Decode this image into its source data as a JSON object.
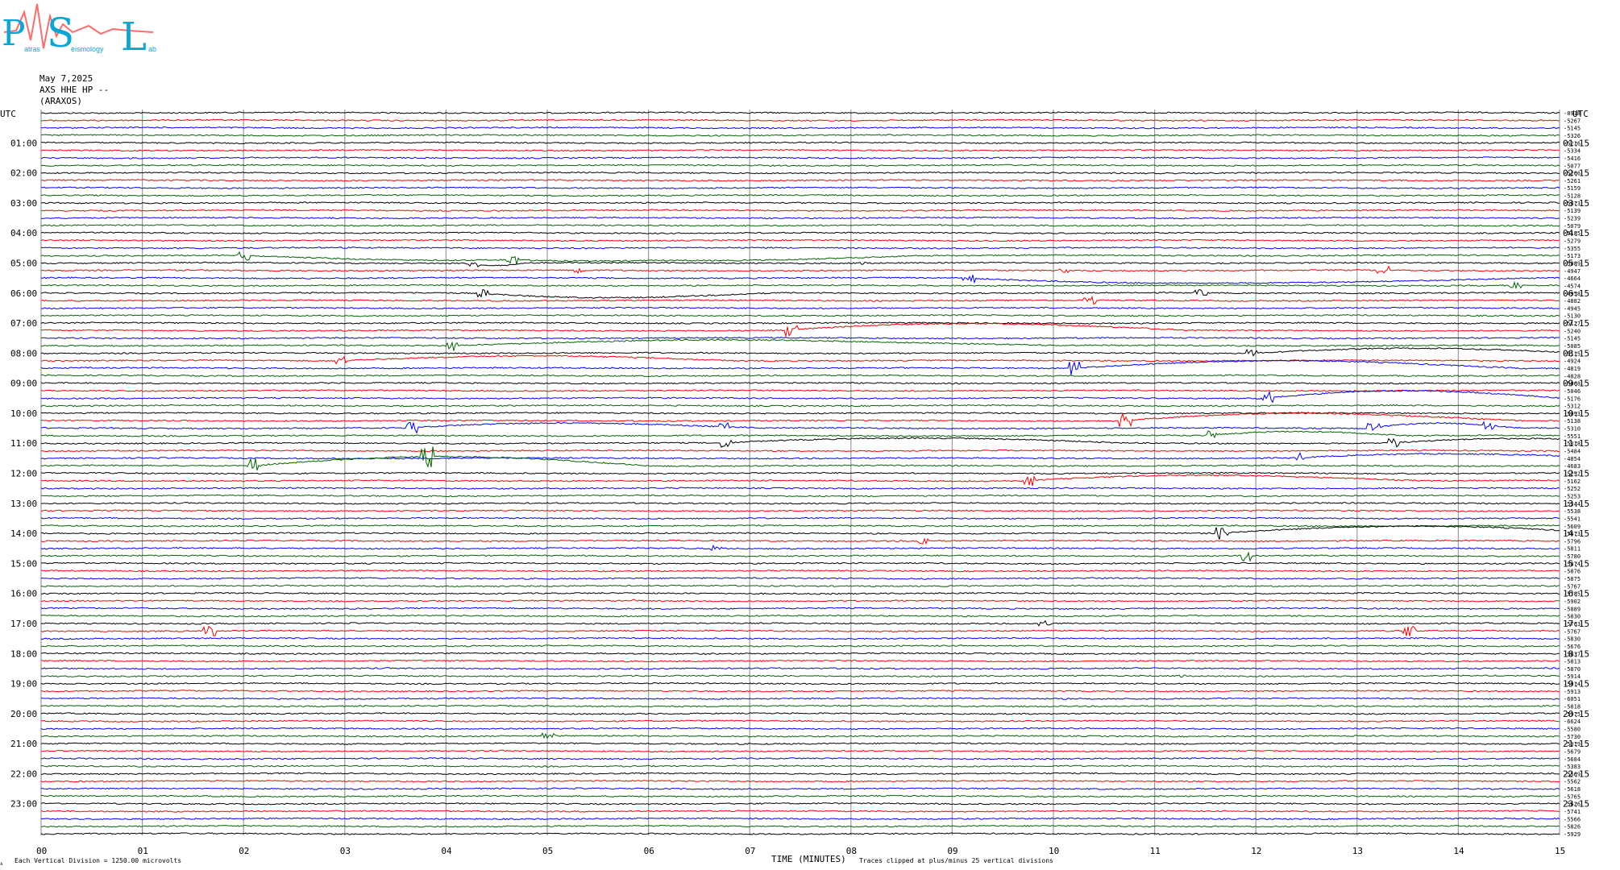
{
  "logo": {
    "big_letters": [
      "P",
      "S",
      "L"
    ],
    "small_words": [
      "atras",
      "eismology",
      "ab"
    ]
  },
  "header": {
    "date": "May 7,2025",
    "channel": "AXS HHE HP --",
    "station": "(ARAXOS)"
  },
  "chart_data": {
    "type": "line",
    "title": "",
    "left_axis_title": "UTC",
    "right_axis_title": "UTC",
    "xlabel": "TIME (MINUTES)",
    "xlim": [
      0,
      15
    ],
    "x_ticks": [
      "00",
      "01",
      "02",
      "03",
      "04",
      "05",
      "06",
      "07",
      "08",
      "09",
      "10",
      "11",
      "12",
      "13",
      "14",
      "15"
    ],
    "left_hour_labels": [
      "01:00",
      "02:00",
      "03:00",
      "04:00",
      "05:00",
      "06:00",
      "07:00",
      "08:00",
      "09:00",
      "10:00",
      "11:00",
      "12:00",
      "13:00",
      "14:00",
      "15:00",
      "16:00",
      "17:00",
      "18:00",
      "19:00",
      "20:00",
      "21:00",
      "22:00",
      "23:00"
    ],
    "right_hour_labels": [
      "01:15",
      "02:15",
      "03:15",
      "04:15",
      "05:15",
      "06:15",
      "07:15",
      "08:15",
      "09:15",
      "10:15",
      "11:15",
      "12:15",
      "13:15",
      "14:15",
      "15:15",
      "16:15",
      "17:15",
      "18:15",
      "19:15",
      "20:15",
      "21:15",
      "22:15",
      "23:15"
    ],
    "trace_colors": [
      "#000000",
      "#ff0000",
      "#0000ff",
      "#006400"
    ],
    "right_offsets": [
      "-8918",
      "-5267",
      "-5145",
      "-5326",
      "-5216",
      "-5334",
      "-5416",
      "-5077",
      "-5266",
      "-5261",
      "-5159",
      "-5128",
      "-5073",
      "-5139",
      "-5239",
      "-5079",
      "-5185",
      "-5279",
      "-5355",
      "-5173",
      "-5089",
      "-4947",
      "-4664",
      "-4574",
      "-4958",
      "-4882",
      "-4945",
      "-5130",
      "-5127",
      "-5240",
      "-5145",
      "-5085",
      "-5115",
      "-4924",
      "-4819",
      "-4828",
      "-5068",
      "-5046",
      "-5176",
      "-5312",
      "-5093",
      "-5138",
      "-5310",
      "-5551",
      "-5318",
      "-5484",
      "-4854",
      "-4683",
      "-5252",
      "-5162",
      "-5252",
      "-5253",
      "-5344",
      "-5538",
      "-5541",
      "-5609",
      "-5673",
      "-5796",
      "-5811",
      "-5780",
      "-5874",
      "-5876",
      "-5875",
      "-5767",
      "-5785",
      "-5902",
      "-5889",
      "-5830",
      "-5763",
      "-5767",
      "-5830",
      "-5676",
      "-5837",
      "-5813",
      "-5870",
      "-5914",
      "-5914",
      "-5913",
      "-6051",
      "-5818",
      "-5975",
      "-6624",
      "-5580",
      "-5730",
      "-5919",
      "-5679",
      "-5684",
      "-5383",
      "-5569",
      "-5562",
      "-5618",
      "-5765",
      "-5626",
      "-5741",
      "-5566",
      "-5826",
      "-5929"
    ],
    "events": [
      {
        "trace": 19,
        "minute": 1.95,
        "amp": 5,
        "tail": 4.2,
        "sign": 1
      },
      {
        "trace": 20,
        "minute": 4.2,
        "amp": 3,
        "tail": 0.6,
        "sign": 1
      },
      {
        "trace": 19,
        "minute": 4.6,
        "amp": 6,
        "tail": 4.0,
        "sign": 1
      },
      {
        "trace": 21,
        "minute": 5.25,
        "amp": 4,
        "tail": 0.3,
        "sign": 1
      },
      {
        "trace": 20,
        "minute": 8.05,
        "amp": 3,
        "tail": 0.2,
        "sign": 1
      },
      {
        "trace": 22,
        "minute": 9.1,
        "amp": 6,
        "tail": 5.5,
        "sign": 1
      },
      {
        "trace": 21,
        "minute": 10.05,
        "amp": 3,
        "tail": 0.3,
        "sign": 1
      },
      {
        "trace": 21,
        "minute": 13.2,
        "amp": 4,
        "tail": 0.4,
        "sign": 1
      },
      {
        "trace": 23,
        "minute": 14.5,
        "amp": 3,
        "tail": 0.3,
        "sign": 1
      },
      {
        "trace": 24,
        "minute": 4.3,
        "amp": 5,
        "tail": 3.0,
        "sign": 1
      },
      {
        "trace": 24,
        "minute": 11.4,
        "amp": 3,
        "tail": 0.3,
        "sign": 1
      },
      {
        "trace": 25,
        "minute": 10.3,
        "amp": 4,
        "tail": 0.3,
        "sign": 1
      },
      {
        "trace": 29,
        "minute": 7.35,
        "amp": 8,
        "tail": 4.0,
        "sign": -1
      },
      {
        "trace": 31,
        "minute": 4.0,
        "amp": 6,
        "tail": 6.0,
        "sign": -1
      },
      {
        "trace": 33,
        "minute": 2.9,
        "amp": 5,
        "tail": 4.0,
        "sign": -1
      },
      {
        "trace": 32,
        "minute": 11.9,
        "amp": 5,
        "tail": 3.5,
        "sign": -1
      },
      {
        "trace": 34,
        "minute": 10.15,
        "amp": 8,
        "tail": 4.5,
        "sign": -1
      },
      {
        "trace": 38,
        "minute": 12.05,
        "amp": 8,
        "tail": 3.0,
        "sign": -1
      },
      {
        "trace": 41,
        "minute": 10.65,
        "amp": 8,
        "tail": 4.0,
        "sign": -1
      },
      {
        "trace": 42,
        "minute": 3.6,
        "amp": 6,
        "tail": 3.5,
        "sign": -1
      },
      {
        "trace": 42,
        "minute": 6.7,
        "amp": 4,
        "tail": 0.4,
        "sign": 1
      },
      {
        "trace": 42,
        "minute": 13.1,
        "amp": 6,
        "tail": 1.5,
        "sign": -1
      },
      {
        "trace": 42,
        "minute": 14.25,
        "amp": 6,
        "tail": 0.3,
        "sign": 1
      },
      {
        "trace": 43,
        "minute": 11.5,
        "amp": 5,
        "tail": 2.0,
        "sign": -1
      },
      {
        "trace": 44,
        "minute": 6.7,
        "amp": 6,
        "tail": 4.0,
        "sign": -1
      },
      {
        "trace": 44,
        "minute": 13.3,
        "amp": 5,
        "tail": 3.0,
        "sign": -1
      },
      {
        "trace": 46,
        "minute": 12.35,
        "amp": 5,
        "tail": 3.5,
        "sign": -1
      },
      {
        "trace": 47,
        "minute": 2.05,
        "amp": 10,
        "tail": 4.0,
        "sign": -1
      },
      {
        "trace": 47,
        "minute": 3.75,
        "amp": 12,
        "tail": 0.3,
        "sign": 1
      },
      {
        "trace": 49,
        "minute": 9.7,
        "amp": 6,
        "tail": 4.0,
        "sign": -1
      },
      {
        "trace": 56,
        "minute": 11.6,
        "amp": 8,
        "tail": 4.0,
        "sign": -1
      },
      {
        "trace": 57,
        "minute": 8.65,
        "amp": 6,
        "tail": 0.3,
        "sign": 1
      },
      {
        "trace": 58,
        "minute": 6.6,
        "amp": 4,
        "tail": 0.3,
        "sign": 1
      },
      {
        "trace": 59,
        "minute": 11.85,
        "amp": 7,
        "tail": 0.3,
        "sign": 1
      },
      {
        "trace": 65,
        "minute": 5.8,
        "amp": 2,
        "tail": 0.2,
        "sign": 1
      },
      {
        "trace": 68,
        "minute": 9.85,
        "amp": 3,
        "tail": 0.2,
        "sign": 1
      },
      {
        "trace": 69,
        "minute": 1.6,
        "amp": 6,
        "tail": 0.3,
        "sign": 1
      },
      {
        "trace": 69,
        "minute": 13.45,
        "amp": 7,
        "tail": 0.3,
        "sign": 1
      },
      {
        "trace": 75,
        "minute": 11.2,
        "amp": 3,
        "tail": 0.2,
        "sign": 1
      },
      {
        "trace": 78,
        "minute": 12.6,
        "amp": 1,
        "tail": 0.2,
        "sign": 1
      },
      {
        "trace": 83,
        "minute": 4.95,
        "amp": 4,
        "tail": 0.2,
        "sign": 1
      }
    ]
  },
  "footer": {
    "left_note": "Each Vertical Division = 1250.00 microvolts",
    "right_note": "Traces clipped at plus/minus 25 vertical divisions",
    "corner_mark": "ᴀ"
  }
}
